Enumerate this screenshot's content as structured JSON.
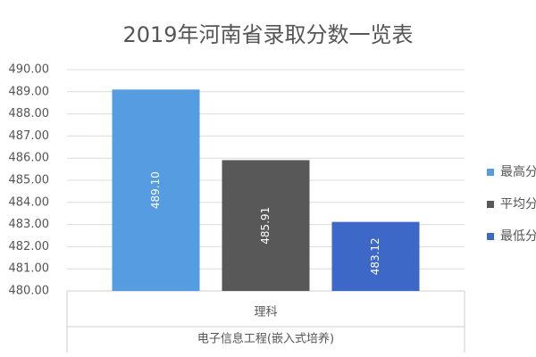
{
  "chart_data": {
    "type": "bar",
    "title": "2019年河南省录取分数一览表",
    "categories": [
      "理科"
    ],
    "category_group": "电子信息工程(嵌入式培养)",
    "series": [
      {
        "name": "最高分",
        "color": "#559ce0",
        "values": [
          489.1
        ],
        "value_labels": [
          "489.10"
        ]
      },
      {
        "name": "平均分",
        "color": "#585858",
        "values": [
          485.91
        ],
        "value_labels": [
          "485.91"
        ]
      },
      {
        "name": "最低分",
        "color": "#3d68c8",
        "values": [
          483.12
        ],
        "value_labels": [
          "483.12"
        ]
      }
    ],
    "ylim": [
      480,
      490
    ],
    "yticks": [
      {
        "value": 480,
        "label": "480.00"
      },
      {
        "value": 481,
        "label": "481.00"
      },
      {
        "value": 482,
        "label": "482.00"
      },
      {
        "value": 483,
        "label": "483.00"
      },
      {
        "value": 484,
        "label": "484.00"
      },
      {
        "value": 485,
        "label": "485.00"
      },
      {
        "value": 486,
        "label": "486.00"
      },
      {
        "value": 487,
        "label": "487.00"
      },
      {
        "value": 488,
        "label": "488.00"
      },
      {
        "value": 489,
        "label": "489.00"
      },
      {
        "value": 490,
        "label": "490.00"
      }
    ],
    "grid": true,
    "legend": "right"
  }
}
